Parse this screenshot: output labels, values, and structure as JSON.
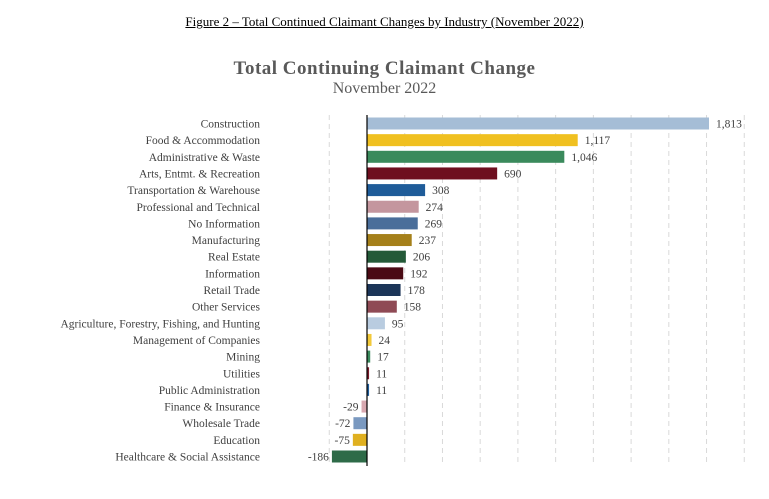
{
  "figure_caption": "Figure 2 – Total Continued Claimant Changes by Industry (November 2022)",
  "chart_data": {
    "type": "bar",
    "orientation": "horizontal",
    "title": "Total Continuing Claimant Change",
    "subtitle": "November 2022",
    "xlim": [
      -200,
      2000
    ],
    "grid": "vertical dashed",
    "categories": [
      "Construction",
      "Food & Accommodation",
      "Administrative & Waste",
      "Arts, Entmt. & Recreation",
      "Transportation & Warehouse",
      "Professional and Technical",
      "No Information",
      "Manufacturing",
      "Real Estate",
      "Information",
      "Retail Trade",
      "Other Services",
      "Agriculture, Forestry, Fishing, and Hunting",
      "Management of Companies",
      "Mining",
      "Utilities",
      "Public Administration",
      "Finance & Insurance",
      "Wholesale Trade",
      "Education",
      "Healthcare & Social Assistance"
    ],
    "values": [
      1813,
      1117,
      1046,
      690,
      308,
      274,
      269,
      237,
      206,
      192,
      178,
      158,
      95,
      24,
      17,
      11,
      11,
      -29,
      -72,
      -75,
      -186
    ],
    "value_labels": [
      "1,813",
      "1,117",
      "1,046",
      "690",
      "308",
      "274",
      "269",
      "237",
      "206",
      "192",
      "178",
      "158",
      "95",
      "24",
      "17",
      "11",
      "11",
      "-29",
      "-72",
      "-75",
      "-186"
    ],
    "colors": [
      "#a5bdd6",
      "#f0c020",
      "#3a8a5c",
      "#6e0f1f",
      "#1f5c99",
      "#c4969e",
      "#4a6e9a",
      "#a5801a",
      "#245a38",
      "#4a0a14",
      "#1c3558",
      "#8f4a55",
      "#b9cce0",
      "#f2c93a",
      "#3a8a5c",
      "#7a1a2a",
      "#1f5c99",
      "#d8a8b0",
      "#7a99c0",
      "#e0b020",
      "#2e6b48"
    ]
  }
}
